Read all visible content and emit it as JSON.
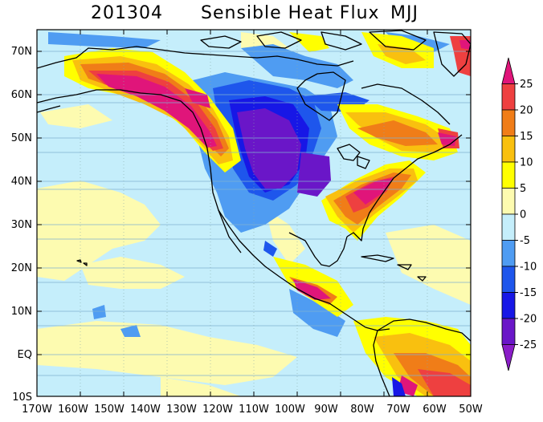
{
  "title": {
    "code": "201304",
    "variable": "Sensible Heat Flux",
    "season": "MJJ"
  },
  "axes": {
    "lat_labels": [
      "70N",
      "60N",
      "50N",
      "40N",
      "30N",
      "20N",
      "10N",
      "EQ",
      "10S"
    ],
    "lon_labels": [
      "170W",
      "160W",
      "150W",
      "140W",
      "130W",
      "120W",
      "110W",
      "100W",
      "90W",
      "80W",
      "70W",
      "60W",
      "50W"
    ]
  },
  "colorbar": {
    "labels": [
      "25",
      "20",
      "15",
      "10",
      "5",
      "0",
      "-5",
      "-10",
      "-15",
      "-20",
      "-25"
    ],
    "colors": [
      "#e0157a",
      "#ee4040",
      "#f07d18",
      "#f9c00f",
      "#ffff00",
      "#fdfbb0",
      "#c5eefb",
      "#4f9cf2",
      "#1e56ec",
      "#1717e6",
      "#6a16c8",
      "#8a1dc8"
    ]
  },
  "palette": {
    "ocean_bg": "#c5eefb",
    "land_line": "#000000",
    "grid": "#7fb0d0"
  }
}
